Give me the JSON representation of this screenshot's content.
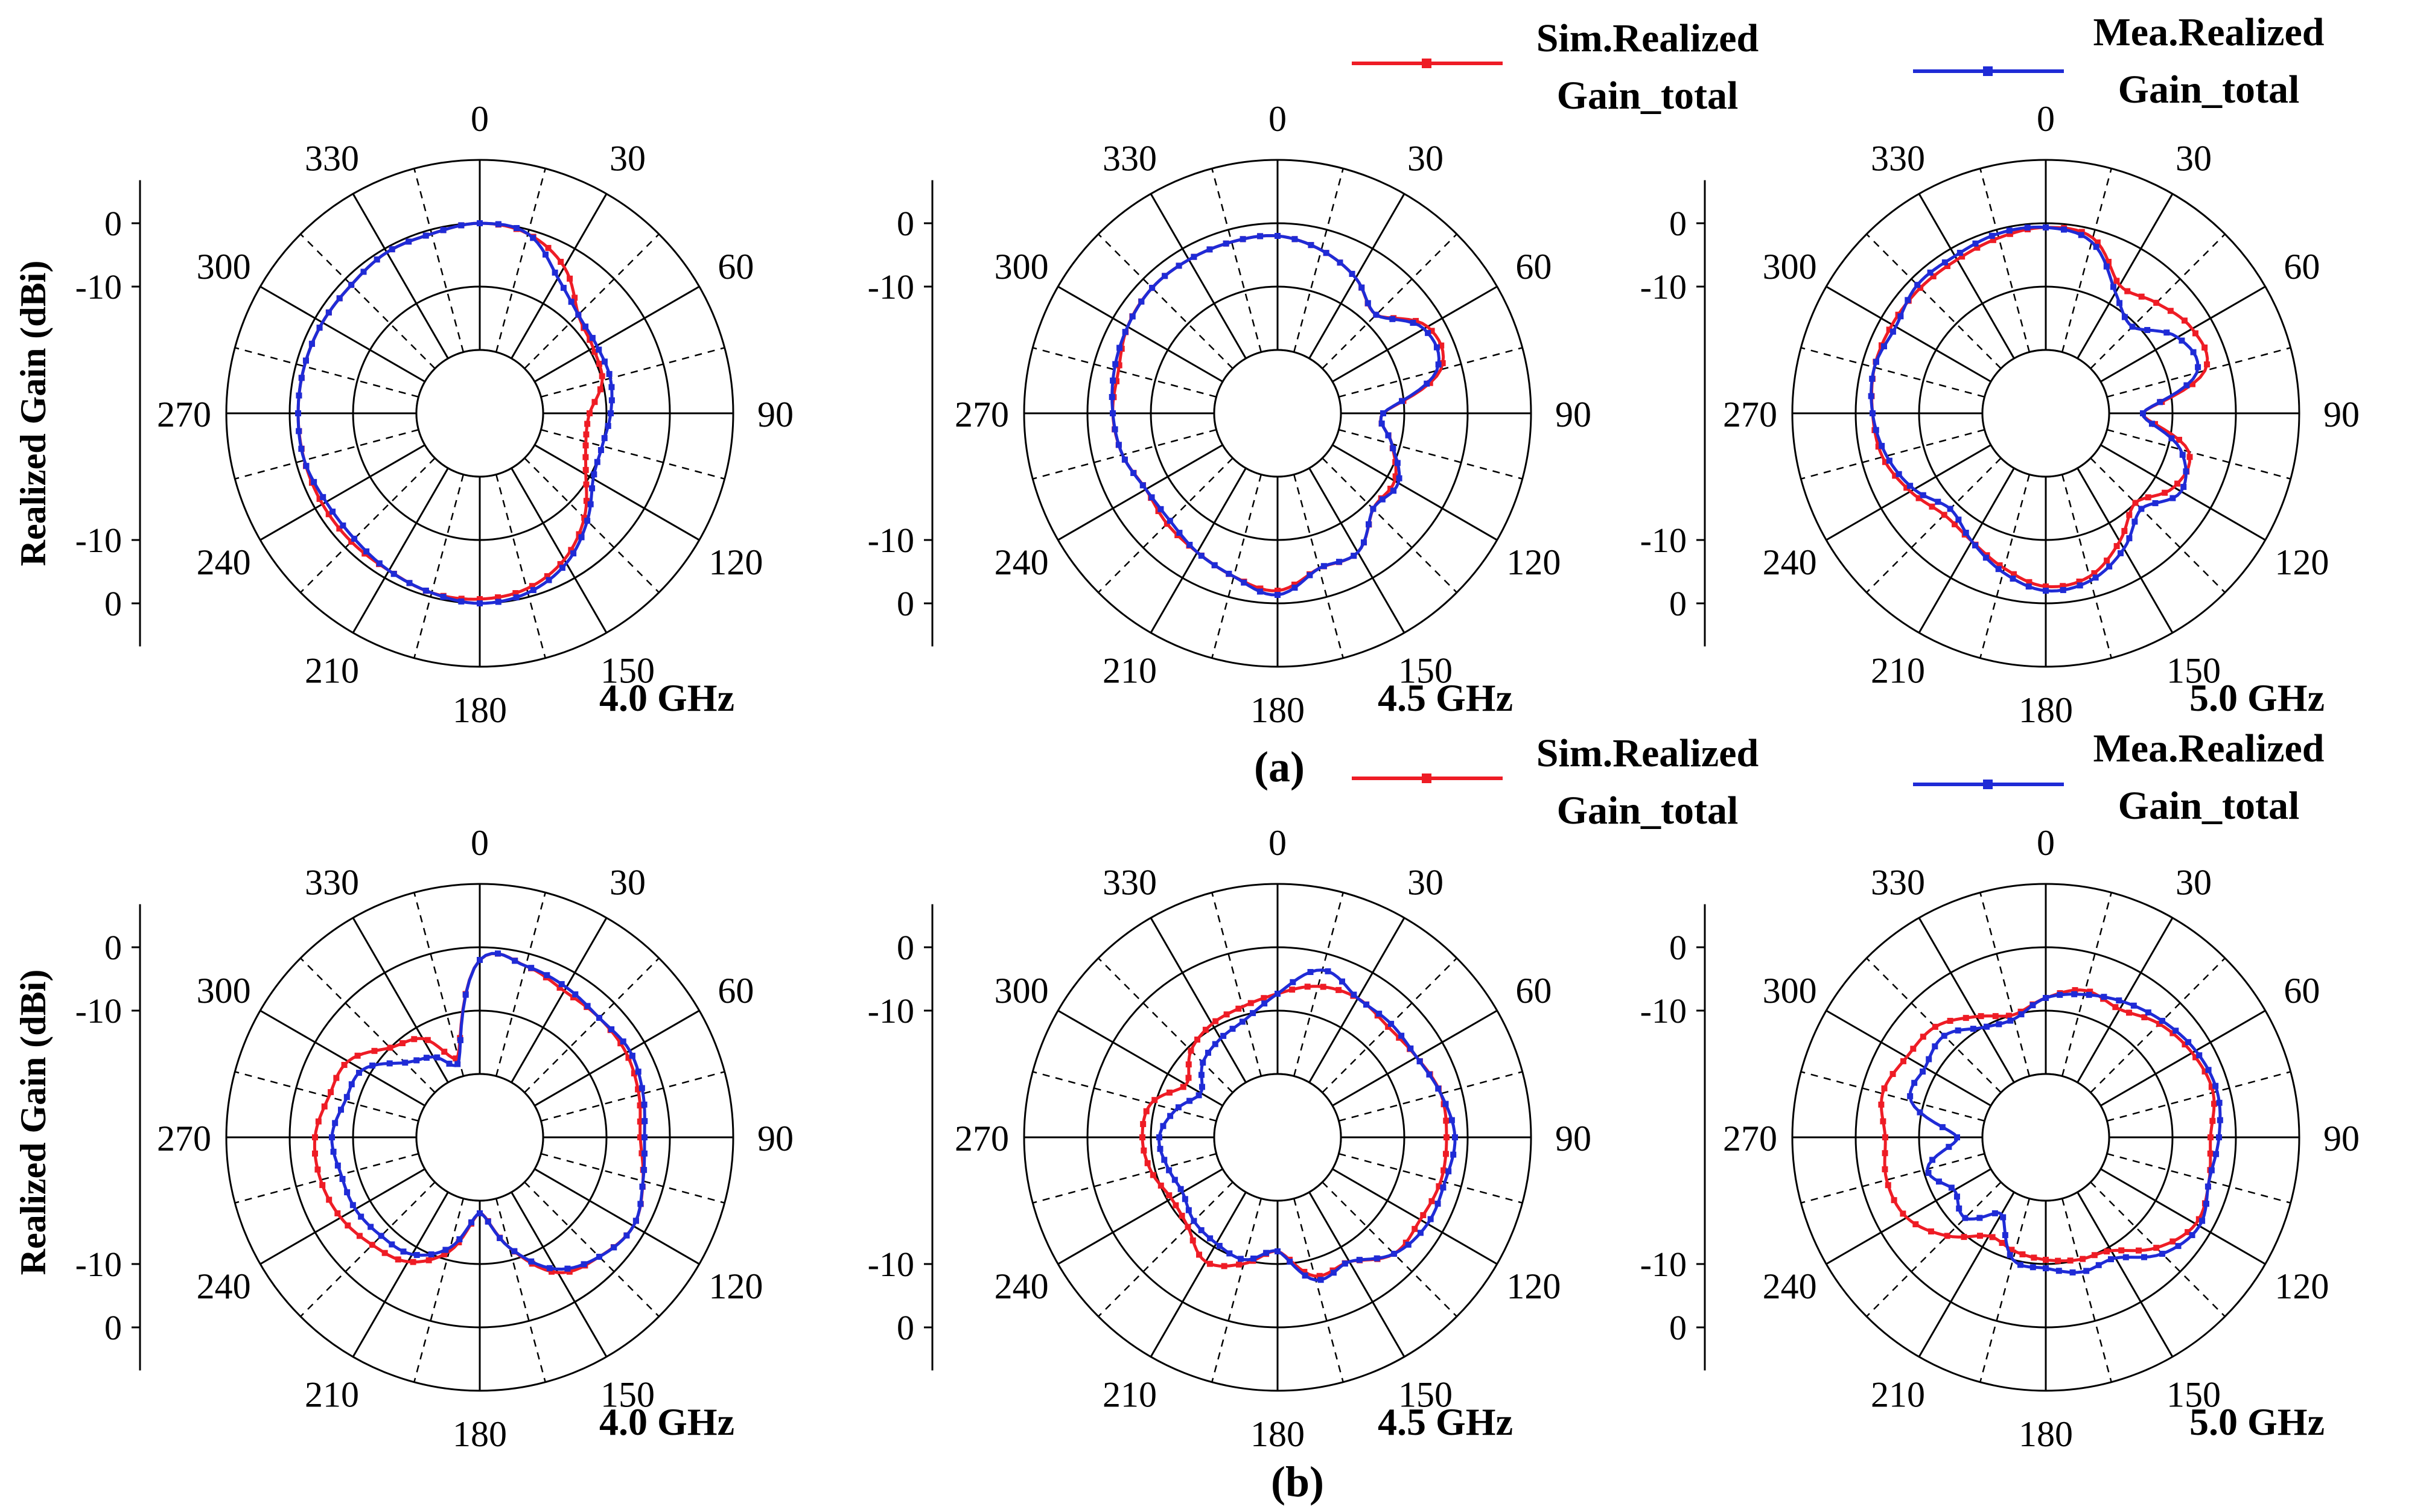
{
  "figure": {
    "row_labels": [
      "(a)",
      "(b)"
    ],
    "legend": {
      "sim_label_line1": "Sim.Realized",
      "sim_label_line2": "Gain_total",
      "mea_label_line1": "Mea.Realized",
      "mea_label_line2": "Gain_total",
      "sim_color": "#ee1c25",
      "mea_color": "#1f2bd6"
    },
    "ylabel": "Realized Gain (dBi)",
    "radial_tick_labels": [
      "0",
      "-10",
      "-10",
      "0"
    ],
    "angle_tick_labels": [
      "0",
      "30",
      "60",
      "90",
      "120",
      "150",
      "180",
      "210",
      "240",
      "270",
      "300",
      "330"
    ]
  },
  "chart_data": [
    {
      "type": "polar-line",
      "row": "a",
      "title": "4.0 GHz",
      "rlim_dBi": [
        -15,
        0
      ],
      "theta_deg": [
        0,
        15,
        30,
        45,
        60,
        75,
        90,
        105,
        120,
        135,
        150,
        165,
        180,
        195,
        210,
        225,
        240,
        255,
        270,
        285,
        300,
        315,
        330,
        345
      ],
      "series": [
        {
          "name": "Sim.Realized Gain_total",
          "values": [
            0.0,
            -0.5,
            -2.5,
            -6.0,
            -7.0,
            -7.5,
            -9.5,
            -9.5,
            -8.0,
            -5.0,
            -2.5,
            -1.0,
            -0.5,
            -0.5,
            -1.0,
            -1.0,
            -1.0,
            -1.0,
            -1.0,
            -1.0,
            -1.0,
            -1.0,
            -0.5,
            -0.5
          ]
        },
        {
          "name": "Mea.Realized Gain_total",
          "values": [
            0.0,
            -0.5,
            -4.0,
            -6.0,
            -6.5,
            -6.5,
            -7.0,
            -7.5,
            -7.0,
            -4.5,
            -2.0,
            -0.5,
            0.0,
            -0.5,
            -1.0,
            -1.5,
            -1.5,
            -1.0,
            -1.0,
            -1.0,
            -1.0,
            -1.0,
            -0.5,
            -0.5
          ]
        }
      ]
    },
    {
      "type": "polar-line",
      "row": "a",
      "title": "4.5 GHz",
      "rlim_dBi": [
        -15,
        0
      ],
      "theta_deg": [
        0,
        15,
        30,
        45,
        60,
        75,
        90,
        105,
        120,
        135,
        150,
        165,
        180,
        195,
        210,
        225,
        240,
        255,
        270,
        285,
        300,
        315,
        330,
        345
      ],
      "series": [
        {
          "name": "Sim.Realized Gain_total",
          "values": [
            -1.5,
            -2.5,
            -4.0,
            -6.0,
            -2.0,
            -2.5,
            -10.0,
            -8.5,
            -6.5,
            -6.5,
            -3.5,
            -3.5,
            -1.5,
            -2.5,
            -3.5,
            -4.0,
            -4.5,
            -3.5,
            -3.0,
            -3.0,
            -2.0,
            -1.5,
            -1.5,
            -1.5
          ]
        },
        {
          "name": "Mea.Realized Gain_total",
          "values": [
            -1.5,
            -2.5,
            -4.0,
            -6.0,
            -2.5,
            -3.0,
            -10.0,
            -8.5,
            -6.0,
            -6.5,
            -3.5,
            -3.5,
            -1.0,
            -2.5,
            -3.5,
            -4.5,
            -4.5,
            -3.5,
            -3.0,
            -2.5,
            -2.0,
            -1.5,
            -1.5,
            -1.5
          ]
        }
      ]
    },
    {
      "type": "polar-line",
      "row": "a",
      "title": "5.0 GHz",
      "rlim_dBi": [
        -15,
        0
      ],
      "theta_deg": [
        0,
        15,
        30,
        45,
        60,
        75,
        90,
        105,
        120,
        135,
        150,
        165,
        180,
        195,
        210,
        225,
        240,
        255,
        270,
        285,
        300,
        315,
        330,
        345
      ],
      "series": [
        {
          "name": "Sim.Realized Gain_total",
          "values": [
            -0.5,
            -1.0,
            -5.0,
            -4.0,
            -2.5,
            -3.0,
            -11.0,
            -5.0,
            -5.0,
            -7.5,
            -5.0,
            -2.5,
            -2.0,
            -3.5,
            -5.0,
            -5.5,
            -4.0,
            -2.5,
            -2.0,
            -1.5,
            -1.5,
            -1.5,
            -1.5,
            -1.0
          ]
        },
        {
          "name": "Mea.Realized Gain_total",
          "values": [
            -0.5,
            -1.5,
            -6.0,
            -8.0,
            -4.5,
            -4.0,
            -11.0,
            -6.0,
            -4.0,
            -6.5,
            -4.0,
            -2.0,
            -1.5,
            -3.0,
            -5.0,
            -6.5,
            -4.5,
            -3.0,
            -2.0,
            -1.5,
            -2.0,
            -1.0,
            -1.0,
            -0.5
          ]
        }
      ]
    },
    {
      "type": "polar-line",
      "row": "b",
      "title": "4.0 GHz",
      "rlim_dBi": [
        -15,
        0
      ],
      "theta_deg": [
        0,
        15,
        30,
        45,
        60,
        75,
        90,
        105,
        120,
        135,
        150,
        165,
        180,
        195,
        210,
        225,
        240,
        255,
        270,
        285,
        300,
        315,
        330,
        345
      ],
      "series": [
        {
          "name": "Sim.Realized Gain_total",
          "values": [
            -1.5,
            -1.5,
            -2.5,
            -2.5,
            -2.5,
            -3.0,
            -3.5,
            -2.5,
            -1.5,
            -2.5,
            -4.0,
            -9.0,
            -13.5,
            -8.5,
            -5.5,
            -4.5,
            -3.5,
            -3.0,
            -3.0,
            -4.0,
            -4.5,
            -7.5,
            -9.0,
            -12.5
          ]
        },
        {
          "name": "Mea.Realized Gain_total",
          "values": [
            -1.5,
            -1.5,
            -2.0,
            -2.5,
            -2.0,
            -2.5,
            -3.0,
            -2.5,
            -1.5,
            -2.5,
            -4.5,
            -9.0,
            -13.5,
            -9.0,
            -6.5,
            -6.0,
            -5.5,
            -5.5,
            -5.0,
            -6.0,
            -6.5,
            -10.0,
            -11.5,
            -13.0
          ]
        }
      ]
    },
    {
      "type": "polar-line",
      "row": "b",
      "title": "4.5 GHz",
      "rlim_dBi": [
        -15,
        0
      ],
      "theta_deg": [
        0,
        15,
        30,
        45,
        60,
        75,
        90,
        105,
        120,
        135,
        150,
        165,
        180,
        195,
        210,
        225,
        240,
        255,
        270,
        285,
        300,
        315,
        330,
        345
      ],
      "series": [
        {
          "name": "Sim.Realized Gain_total",
          "values": [
            -5.5,
            -4.0,
            -3.5,
            -4.0,
            -3.5,
            -2.5,
            -2.5,
            -2.5,
            -3.0,
            -3.0,
            -5.5,
            -5.5,
            -9.0,
            -7.0,
            -5.5,
            -7.5,
            -8.0,
            -7.0,
            -6.5,
            -7.0,
            -10.0,
            -8.0,
            -7.0,
            -6.5
          ]
        },
        {
          "name": "Mea.Realized Gain_total",
          "values": [
            -5.5,
            -2.0,
            -3.5,
            -3.5,
            -3.5,
            -2.5,
            -1.5,
            -2.0,
            -2.0,
            -3.0,
            -5.5,
            -5.0,
            -9.0,
            -7.5,
            -8.0,
            -8.5,
            -9.5,
            -9.0,
            -8.5,
            -10.0,
            -12.0,
            -10.0,
            -9.0,
            -8.0
          ]
        }
      ]
    },
    {
      "type": "polar-line",
      "row": "b",
      "title": "5.0 GHz",
      "rlim_dBi": [
        -15,
        0
      ],
      "theta_deg": [
        0,
        15,
        30,
        45,
        60,
        75,
        90,
        105,
        120,
        135,
        150,
        165,
        180,
        195,
        210,
        225,
        240,
        255,
        270,
        285,
        300,
        315,
        330,
        345
      ],
      "series": [
        {
          "name": "Sim.Realized Gain_total",
          "values": [
            -6.0,
            -4.5,
            -5.0,
            -3.5,
            -2.5,
            -2.0,
            -3.0,
            -2.5,
            -2.0,
            -4.0,
            -7.0,
            -7.5,
            -8.0,
            -8.5,
            -9.0,
            -6.0,
            -3.5,
            -3.0,
            -3.5,
            -2.5,
            -3.5,
            -4.0,
            -6.0,
            -7.5
          ]
        },
        {
          "name": "Mea.Realized Gain_total",
          "values": [
            -6.0,
            -5.0,
            -4.0,
            -3.0,
            -2.0,
            -1.5,
            -2.0,
            -2.5,
            -1.5,
            -3.0,
            -6.0,
            -6.0,
            -7.0,
            -7.5,
            -12.0,
            -9.0,
            -10.0,
            -8.0,
            -12.0,
            -6.0,
            -6.0,
            -5.5,
            -7.5,
            -8.0
          ]
        }
      ]
    }
  ]
}
